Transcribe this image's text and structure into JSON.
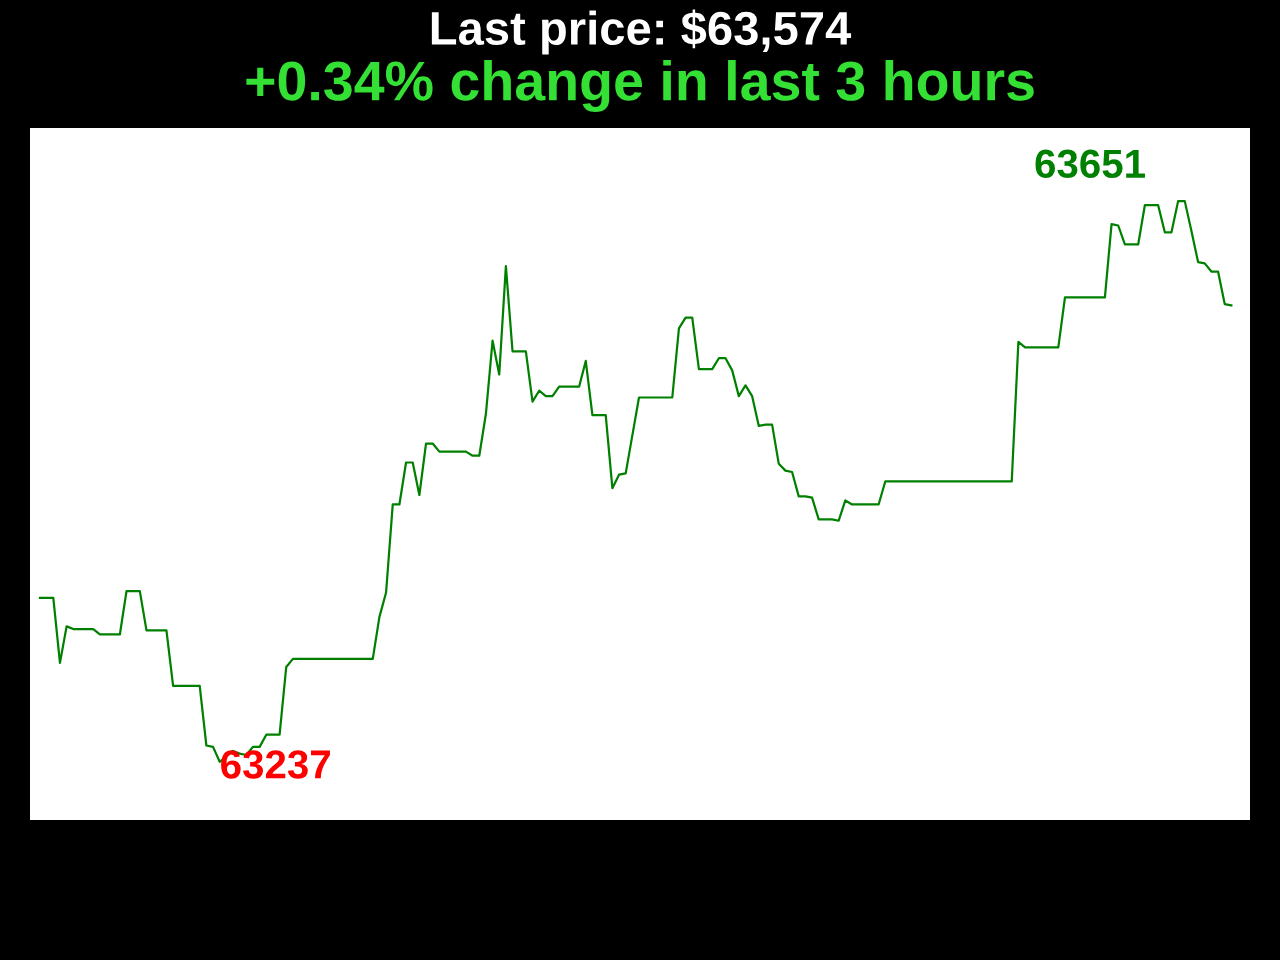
{
  "chart_data": {
    "type": "line",
    "title": "Last price: $63,574",
    "subtitle": "+0.34% change in last 3 hours",
    "categories": [
      null,
      null,
      null,
      null,
      null,
      null,
      null,
      null,
      null,
      null,
      null,
      null,
      null,
      null,
      null,
      null,
      null,
      null,
      null,
      null,
      null,
      null,
      null,
      null,
      null,
      null,
      null,
      null,
      null,
      null,
      null,
      null,
      null,
      null,
      null,
      null,
      null,
      null,
      null,
      null,
      null,
      null,
      null,
      null,
      null,
      null,
      null,
      null,
      null,
      null,
      null,
      null,
      null,
      null,
      null,
      null,
      null,
      null,
      null,
      null,
      null,
      null,
      null,
      null,
      null,
      null,
      null,
      null,
      null,
      null,
      null,
      null,
      null,
      null,
      null,
      null,
      null,
      null,
      null,
      null,
      null,
      null,
      null,
      null,
      null,
      null,
      null,
      null,
      null,
      null,
      null,
      null,
      null,
      null,
      null,
      null,
      null,
      null,
      null,
      null,
      null,
      null,
      null,
      null,
      null,
      null,
      null,
      null,
      null,
      null,
      null,
      null,
      null,
      null,
      null,
      null,
      null,
      null,
      null,
      null,
      null,
      null,
      null,
      null,
      null,
      null,
      null,
      null,
      null,
      null,
      null,
      null,
      null,
      null,
      null,
      null,
      null,
      null,
      null,
      null,
      null,
      null,
      null,
      null,
      null,
      null,
      null,
      null,
      null,
      null,
      null,
      null,
      null,
      null,
      null,
      null,
      null,
      null,
      null,
      null,
      null,
      null,
      null,
      null,
      null,
      null,
      null,
      null,
      null,
      null,
      null,
      null,
      null,
      null,
      null,
      null,
      null,
      null,
      null,
      null
    ],
    "series": [
      {
        "color": "#008000",
        "values": [
          63358,
          63358,
          63358,
          63310,
          63337,
          63335,
          63335,
          63335,
          63335,
          63331,
          63331,
          63331,
          63331,
          63363,
          63363,
          63363,
          63334,
          63334,
          63334,
          63334,
          63293,
          63293,
          63293,
          63293,
          63293,
          63249,
          63248,
          63237,
          63241,
          63245,
          63243,
          63242,
          63248,
          63248,
          63257,
          63257,
          63257,
          63307,
          63313,
          63313,
          63313,
          63313,
          63313,
          63313,
          63313,
          63313,
          63313,
          63313,
          63313,
          63313,
          63313,
          63344,
          63362,
          63427,
          63427,
          63458,
          63458,
          63434,
          63472,
          63472,
          63466,
          63466,
          63466,
          63466,
          63466,
          63463,
          63463,
          63494,
          63548,
          63523,
          63603,
          63540,
          63540,
          63540,
          63503,
          63511,
          63507,
          63507,
          63514,
          63514,
          63514,
          63514,
          63533,
          63493,
          63493,
          63493,
          63439,
          63449,
          63450,
          63478,
          63506,
          63506,
          63506,
          63506,
          63506,
          63506,
          63557,
          63565,
          63565,
          63527,
          63527,
          63527,
          63535,
          63535,
          63526,
          63507,
          63515,
          63507,
          63485,
          63486,
          63486,
          63457,
          63452,
          63451,
          63433,
          63433,
          63432,
          63416,
          63416,
          63416,
          63415,
          63430,
          63427,
          63427,
          63427,
          63427,
          63427,
          63444,
          63444,
          63444,
          63444,
          63444,
          63444,
          63444,
          63444,
          63444,
          63444,
          63444,
          63444,
          63444,
          63444,
          63444,
          63444,
          63444,
          63444,
          63444,
          63444,
          63547,
          63543,
          63543,
          63543,
          63543,
          63543,
          63543,
          63580,
          63580,
          63580,
          63580,
          63580,
          63580,
          63580,
          63634,
          63633,
          63619,
          63619,
          63619,
          63648,
          63648,
          63648,
          63628,
          63628,
          63651,
          63651,
          63629,
          63606,
          63605,
          63599,
          63599,
          63575,
          63574
        ],
        "value_labels": [
          null,
          null,
          null,
          null,
          null,
          null,
          null,
          null,
          null,
          null,
          null,
          null,
          null,
          null,
          null,
          null,
          null,
          null,
          null,
          null,
          null,
          null,
          null,
          null,
          null,
          null,
          null,
          "63237",
          null,
          null,
          null,
          null,
          null,
          null,
          null,
          null,
          null,
          null,
          null,
          null,
          null,
          null,
          null,
          null,
          null,
          null,
          null,
          null,
          null,
          null,
          null,
          null,
          null,
          null,
          null,
          null,
          null,
          null,
          null,
          null,
          null,
          null,
          null,
          null,
          null,
          null,
          null,
          null,
          null,
          null,
          null,
          null,
          null,
          null,
          null,
          null,
          null,
          null,
          null,
          null,
          null,
          null,
          null,
          null,
          null,
          null,
          null,
          null,
          null,
          null,
          null,
          null,
          null,
          null,
          null,
          null,
          null,
          null,
          null,
          null,
          null,
          null,
          null,
          null,
          null,
          null,
          null,
          null,
          null,
          null,
          null,
          null,
          null,
          null,
          null,
          null,
          null,
          null,
          null,
          null,
          null,
          null,
          null,
          null,
          null,
          null,
          null,
          null,
          null,
          null,
          null,
          null,
          null,
          null,
          null,
          null,
          null,
          null,
          null,
          null,
          null,
          null,
          null,
          null,
          null,
          null,
          null,
          null,
          null,
          null,
          null,
          null,
          null,
          null,
          null,
          null,
          null,
          null,
          null,
          null,
          null,
          null,
          null,
          null,
          null,
          null,
          null,
          null,
          null,
          null,
          null,
          "63651",
          null,
          null,
          null,
          null,
          null,
          null,
          null,
          null
        ]
      }
    ],
    "ylim": [
      63194,
      63705
    ],
    "grid": false,
    "line_style": "solid",
    "marker": "none"
  }
}
